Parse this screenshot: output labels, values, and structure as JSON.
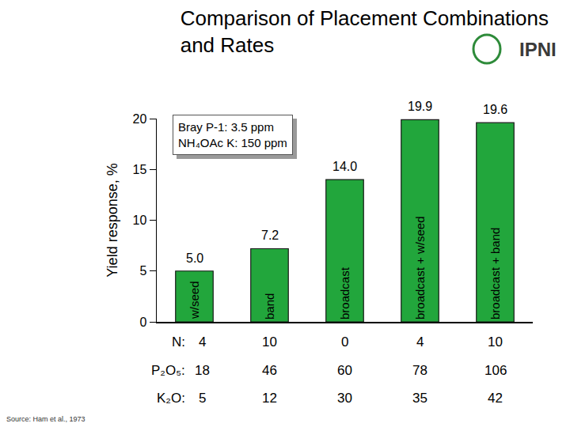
{
  "chart_data": {
    "type": "bar",
    "title": "Comparison of Placement Combinations\nand Rates",
    "y_label": "Yield response, %",
    "categories": [
      "w/seed",
      "band",
      "broadcast",
      "broadcast + w/seed",
      "broadcast + band"
    ],
    "values": [
      5.0,
      7.2,
      14.0,
      19.9,
      19.6
    ],
    "value_labels": [
      "5.0",
      "7.2",
      "14.0",
      "19.9",
      "19.6"
    ],
    "data_labels": true,
    "color": "#22a63c",
    "ylim": [
      0,
      20
    ],
    "yticks": [
      0,
      5,
      10,
      15,
      20
    ],
    "grid": false,
    "tick_labels": "y",
    "inset": [
      "Bray P-1: 3.5 ppm",
      "NH₄OAc K: 150 ppm"
    ],
    "table": {
      "rows": [
        {
          "label": "N:",
          "values": [
            4,
            10,
            0,
            4,
            10
          ]
        },
        {
          "label": "P₂O₅:",
          "values": [
            18,
            46,
            60,
            78,
            106
          ]
        },
        {
          "label": "K₂O:",
          "values": [
            5,
            12,
            30,
            35,
            42
          ]
        }
      ]
    },
    "logo": "IPNI",
    "source": "Source: Ham et al., 1973"
  }
}
